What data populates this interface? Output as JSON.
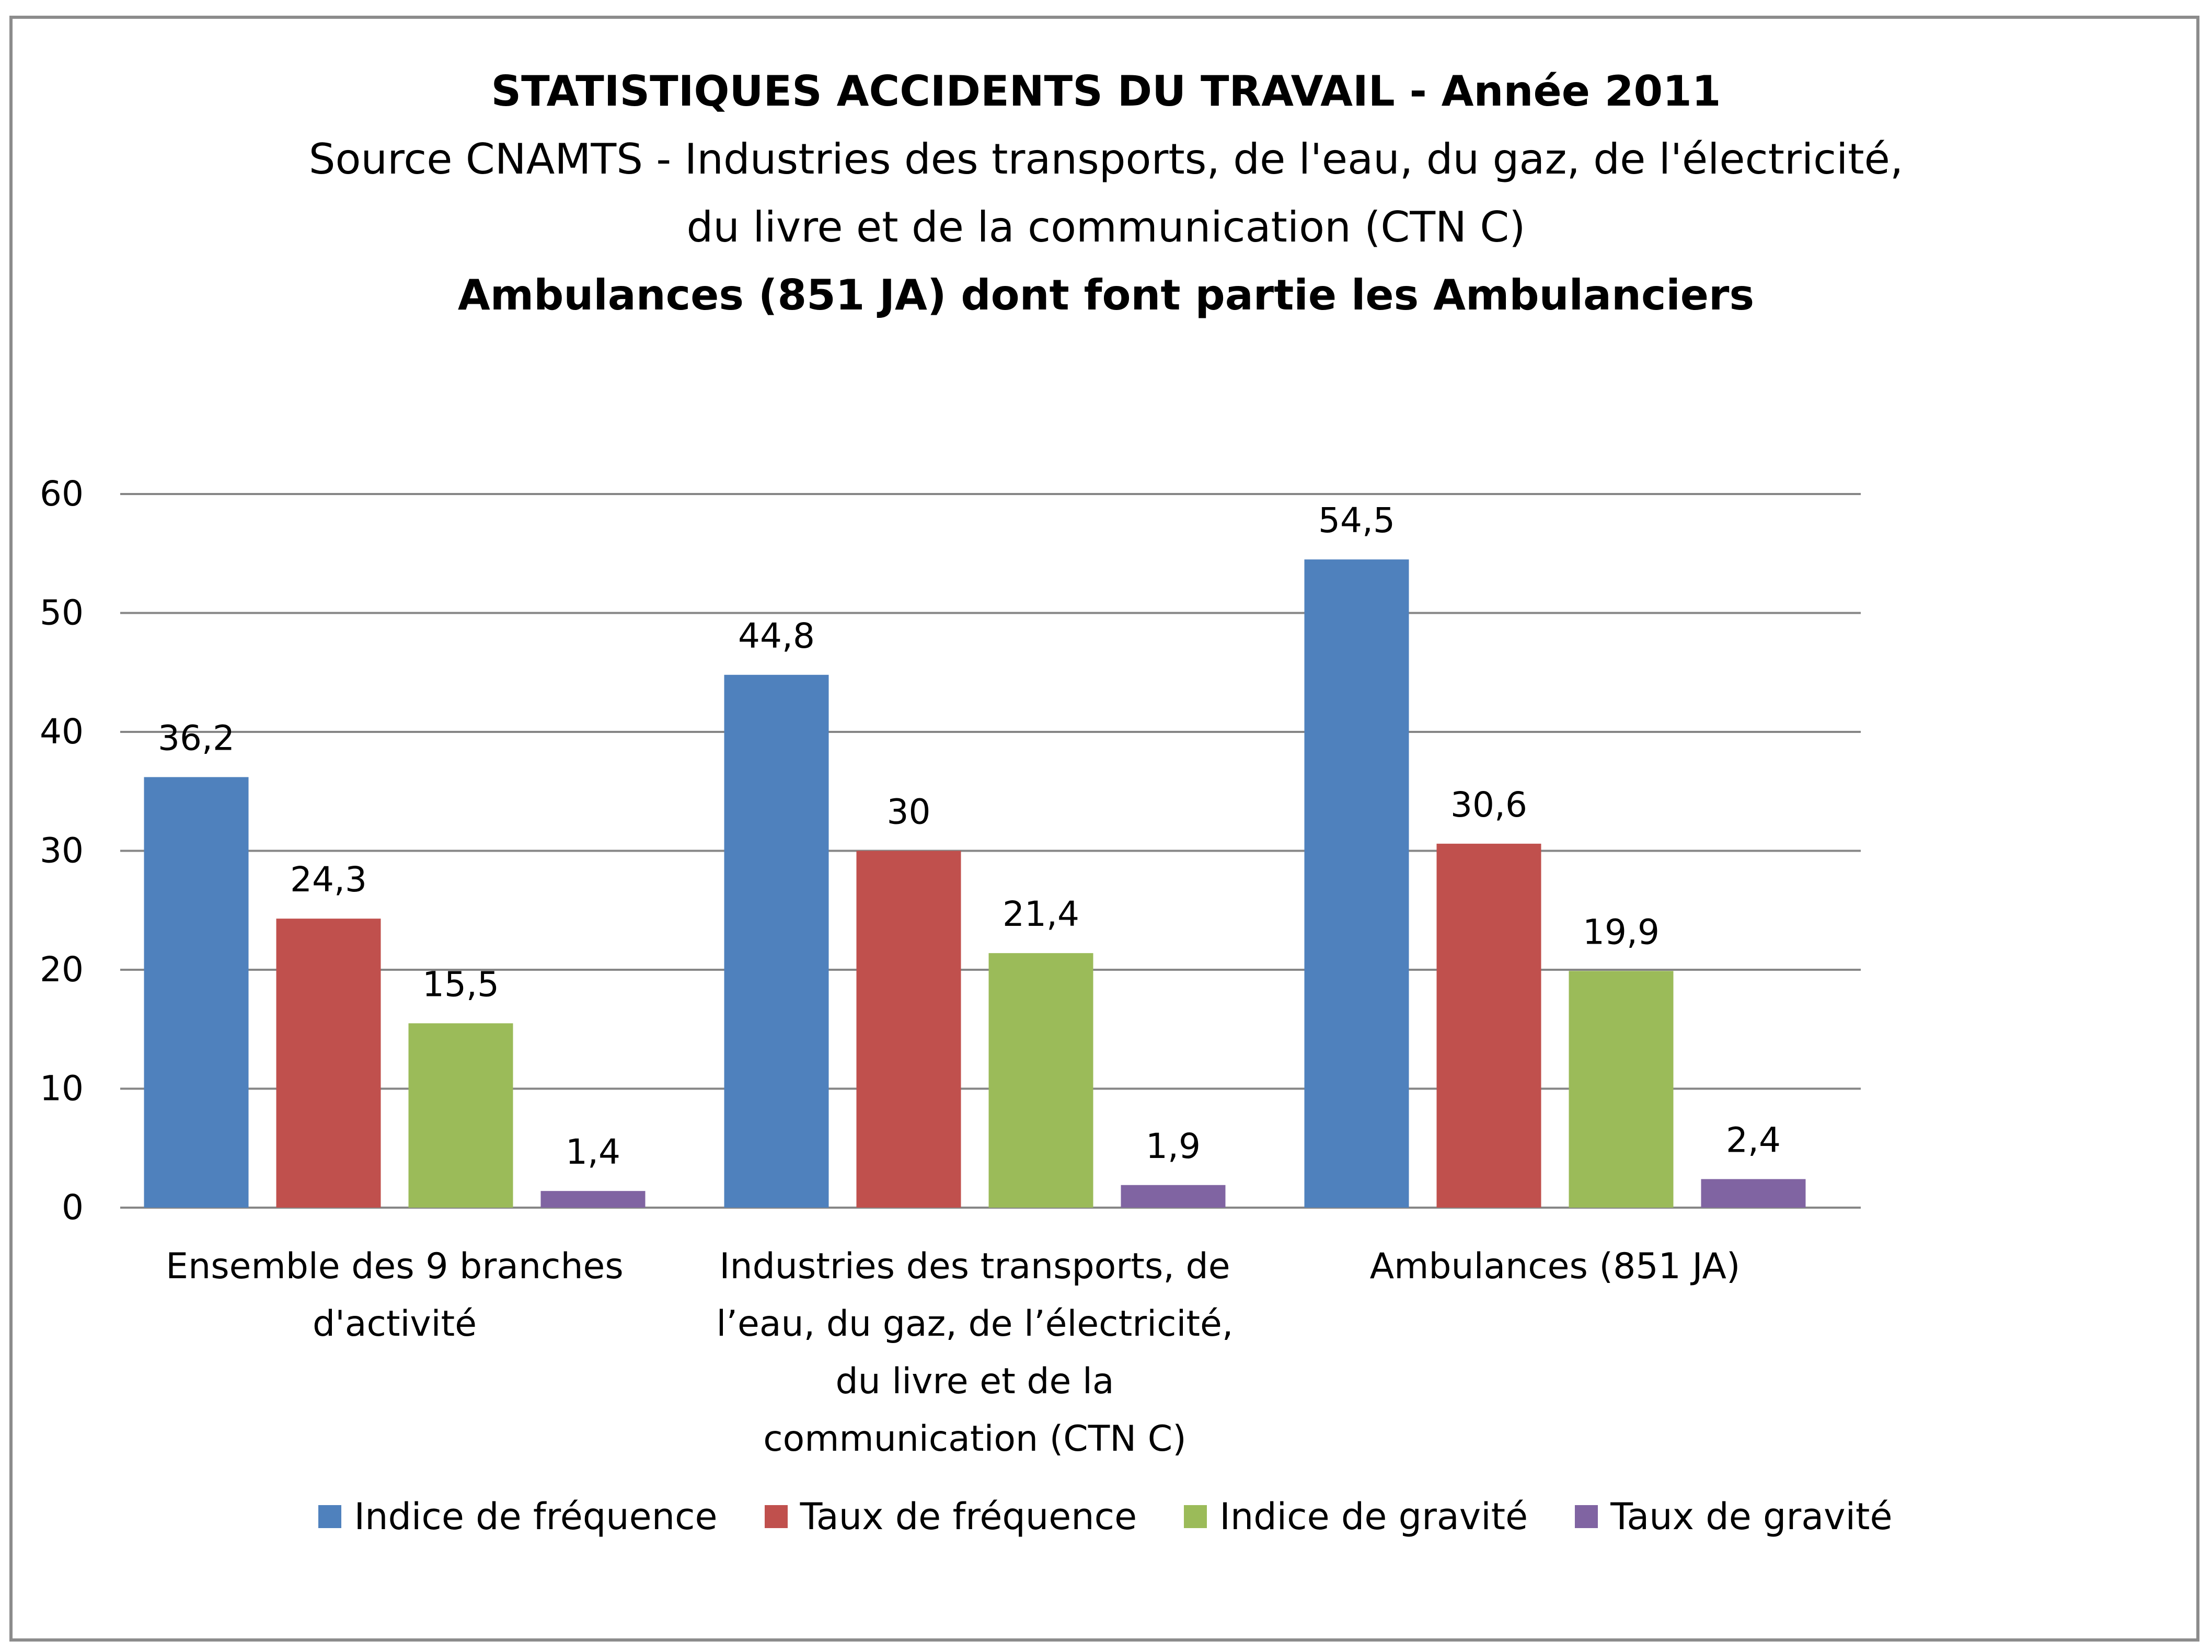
{
  "chart_data": {
    "type": "bar",
    "title": "STATISTIQUES ACCIDENTS DU TRAVAIL - Année 2011",
    "subtitle_lines": [
      "Source CNAMTS - Industries des transports, de l'eau, du gaz, de l'électricité,",
      "du livre et de la communication (CTN C)"
    ],
    "subtitle_bold": "Ambulances (851 JA) dont font partie les Ambulanciers",
    "categories": [
      [
        "Ensemble des 9 branches",
        "d'activité"
      ],
      [
        "Industries des transports, de",
        "l’eau, du gaz, de l’électricité,",
        "du livre et de la",
        "communication (CTN C)"
      ],
      [
        "Ambulances (851 JA)"
      ]
    ],
    "series": [
      {
        "name": "Indice de fréquence",
        "color": "#4f81bd",
        "values": [
          36.2,
          44.8,
          54.5
        ],
        "labels": [
          "36,2",
          "44,8",
          "54,5"
        ]
      },
      {
        "name": "Taux de fréquence",
        "color": "#c0504d",
        "values": [
          24.3,
          30,
          30.6
        ],
        "labels": [
          "24,3",
          "30",
          "30,6"
        ]
      },
      {
        "name": "Indice de gravité",
        "color": "#9bbb59",
        "values": [
          15.5,
          21.4,
          19.9
        ],
        "labels": [
          "15,5",
          "21,4",
          "19,9"
        ]
      },
      {
        "name": "Taux de gravité",
        "color": "#8064a2",
        "values": [
          1.4,
          1.9,
          2.4
        ],
        "labels": [
          "1,4",
          "1,9",
          "2,4"
        ]
      }
    ],
    "yticks": [
      "0",
      "10",
      "20",
      "30",
      "40",
      "50",
      "60"
    ],
    "ylim": [
      0,
      60
    ],
    "grid": true,
    "gridline_color": "#868686",
    "legend_position": "bottom"
  }
}
